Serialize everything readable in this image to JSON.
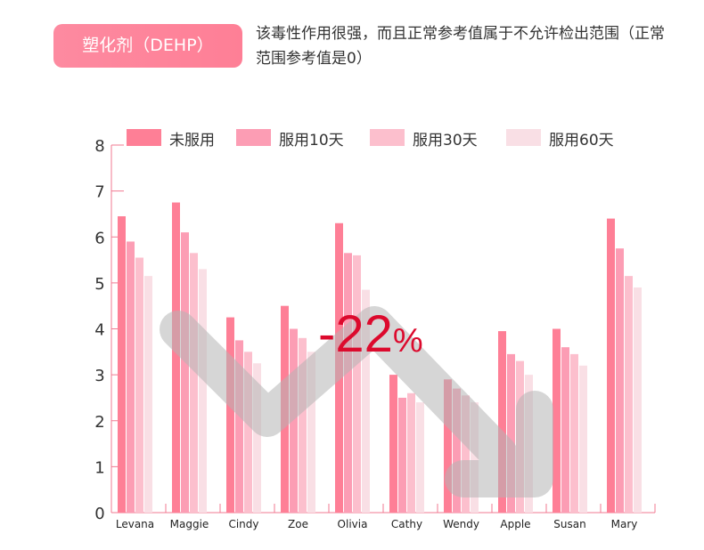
{
  "header": {
    "badge": "塑化剂（DEHP）",
    "description": "该毒性作用很强，而且正常参考值属于不允许检出范围（正常范围参考值是0）"
  },
  "chart_data": {
    "type": "bar",
    "title": "",
    "xlabel": "",
    "ylabel": "",
    "ylim": [
      0,
      8
    ],
    "yticks": [
      "0",
      "1",
      "2",
      "3",
      "4",
      "5",
      "6",
      "7",
      "8"
    ],
    "categories": [
      "Levana",
      "Maggie",
      "Cindy",
      "Zoe",
      "Olivia",
      "Cathy",
      "Wendy",
      "Apple",
      "Susan",
      "Mary"
    ],
    "series": [
      {
        "name": "未服用",
        "color": "#fe7f96",
        "values": [
          6.45,
          6.75,
          4.25,
          4.5,
          6.3,
          3.0,
          2.9,
          3.95,
          4.0,
          6.4
        ]
      },
      {
        "name": "服用10天",
        "color": "#fc9db4",
        "values": [
          5.9,
          6.1,
          3.75,
          4.0,
          5.65,
          2.5,
          2.7,
          3.45,
          3.6,
          5.75
        ]
      },
      {
        "name": "服用30天",
        "color": "#fcbfcd",
        "values": [
          5.55,
          5.65,
          3.5,
          3.8,
          5.6,
          2.6,
          2.55,
          3.3,
          3.45,
          5.15
        ]
      },
      {
        "name": "服用60天",
        "color": "#f9dfe5",
        "values": [
          5.15,
          5.3,
          3.25,
          3.5,
          4.85,
          2.4,
          2.4,
          3.0,
          3.2,
          4.9
        ]
      }
    ],
    "legend": "top",
    "annotation": "-22%"
  }
}
